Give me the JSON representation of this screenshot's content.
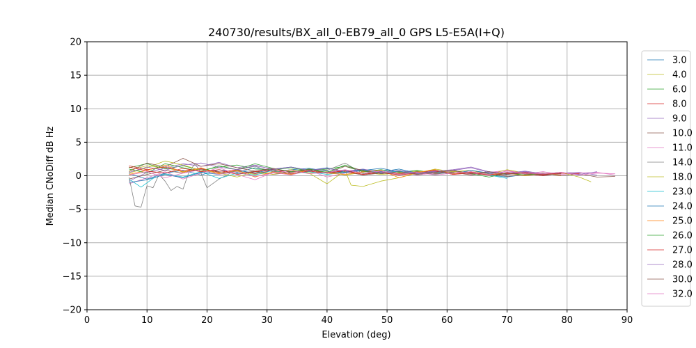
{
  "chart_data": {
    "type": "line",
    "title": "240730/results/BX_all_0-EB79_all_0 GPS L5-E5A(I+Q)",
    "xlabel": "Elevation (deg)",
    "ylabel": "Median CNoDiff dB Hz",
    "xlim": [
      0,
      90
    ],
    "ylim": [
      -20,
      20
    ],
    "x_ticks": [
      0,
      10,
      20,
      30,
      40,
      50,
      60,
      70,
      80,
      90
    ],
    "y_ticks": [
      -20,
      -15,
      -10,
      -5,
      0,
      5,
      10,
      15,
      20
    ],
    "grid": true,
    "legend_position": "right",
    "series": [
      {
        "name": "3.0",
        "color": "#1f77b4",
        "x": [
          7,
          10,
          13,
          16,
          19,
          22,
          25,
          28,
          31,
          34,
          37,
          40,
          43,
          46,
          49,
          52,
          55,
          58,
          61,
          64,
          67,
          70,
          73
        ],
        "y": [
          0.3,
          -0.5,
          0.4,
          0.8,
          0.1,
          0.9,
          0.5,
          1.2,
          0.6,
          0.9,
          1.1,
          0.7,
          0.4,
          0.8,
          1.1,
          0.6,
          0.3,
          0.5,
          0.4,
          0.6,
          0.1,
          -0.2,
          0.2
        ]
      },
      {
        "name": "4.0",
        "color": "#bcbd22",
        "x": [
          7,
          10,
          13,
          16,
          19,
          22,
          25,
          28,
          31,
          34,
          37,
          40,
          43,
          46,
          49,
          52,
          55,
          58,
          61,
          64,
          67,
          70,
          73,
          76
        ],
        "y": [
          0.8,
          1.5,
          1.2,
          0.6,
          1.0,
          0.3,
          0.7,
          0.2,
          0.5,
          0.9,
          0.4,
          0.6,
          0.1,
          0.5,
          0.2,
          0.4,
          0.7,
          0.3,
          0.5,
          0.2,
          0.6,
          0.3,
          0.1,
          0.4
        ]
      },
      {
        "name": "6.0",
        "color": "#2ca02c",
        "x": [
          7,
          10,
          13,
          16,
          19,
          22,
          25,
          28,
          31,
          34,
          37,
          40,
          43,
          46,
          49,
          52,
          55,
          58,
          61,
          64,
          67,
          70,
          73,
          76,
          79
        ],
        "y": [
          1.2,
          1.8,
          1.0,
          1.5,
          0.8,
          1.3,
          1.6,
          1.0,
          0.9,
          1.2,
          0.7,
          1.0,
          1.4,
          0.6,
          0.9,
          0.5,
          0.8,
          0.4,
          0.7,
          0.3,
          0.6,
          0.2,
          0.5,
          0.1,
          0.4
        ]
      },
      {
        "name": "8.0",
        "color": "#d62728",
        "x": [
          7,
          10,
          13,
          16,
          19,
          22,
          25,
          28,
          31,
          34,
          37,
          40,
          43,
          46,
          49,
          52,
          55,
          58,
          61,
          64,
          67,
          70,
          73,
          76,
          79,
          82
        ],
        "y": [
          1.5,
          0.9,
          1.3,
          0.7,
          1.1,
          0.5,
          0.9,
          0.3,
          0.8,
          0.6,
          1.0,
          0.4,
          0.7,
          0.2,
          0.6,
          0.3,
          0.5,
          0.8,
          0.2,
          0.4,
          0.1,
          0.5,
          0.3,
          0.0,
          0.4,
          0.2
        ]
      },
      {
        "name": "9.0",
        "color": "#9467bd",
        "x": [
          7,
          10,
          13,
          16,
          19,
          22,
          25,
          28,
          31,
          34,
          37,
          40,
          43,
          46,
          49,
          52,
          55,
          58,
          61,
          64,
          67,
          70,
          73,
          76,
          79,
          82,
          85
        ],
        "y": [
          -0.8,
          0.5,
          1.1,
          1.8,
          1.4,
          2.0,
          1.2,
          1.6,
          0.9,
          1.3,
          0.8,
          1.1,
          0.6,
          0.9,
          0.4,
          0.7,
          0.3,
          0.6,
          0.8,
          1.2,
          0.5,
          0.3,
          0.6,
          0.2,
          0.4,
          0.5,
          0.1
        ]
      },
      {
        "name": "10.0",
        "color": "#8c564b",
        "x": [
          7,
          10,
          13,
          16,
          19,
          22,
          25,
          28,
          31,
          34,
          37,
          40,
          43,
          46,
          49,
          52,
          55,
          58,
          61,
          64,
          67,
          70,
          73,
          76,
          79,
          82,
          85,
          88
        ],
        "y": [
          -0.5,
          0.2,
          0.8,
          0.4,
          1.0,
          0.6,
          0.3,
          0.7,
          0.2,
          0.5,
          0.9,
          0.4,
          0.6,
          0.1,
          0.4,
          0.2,
          0.6,
          0.3,
          0.5,
          0.1,
          0.3,
          -0.1,
          0.2,
          0.4,
          0.0,
          0.3,
          -0.2,
          -0.1
        ]
      },
      {
        "name": "11.0",
        "color": "#e377c2",
        "x": [
          7,
          10,
          13,
          16,
          19,
          22,
          25,
          28,
          31,
          34,
          37,
          40,
          43,
          46,
          49,
          52,
          55,
          58,
          61,
          64,
          67,
          70,
          73,
          76,
          79,
          82,
          85,
          88
        ],
        "y": [
          -1.2,
          -0.3,
          0.6,
          -0.5,
          0.4,
          1.2,
          0.2,
          -0.6,
          0.5,
          0.1,
          0.8,
          -0.2,
          0.4,
          0.9,
          0.3,
          0.6,
          0.1,
          0.4,
          0.7,
          0.2,
          0.5,
          0.8,
          0.3,
          0.6,
          0.2,
          0.4,
          0.5,
          0.1
        ]
      },
      {
        "name": "14.0",
        "color": "#7f7f7f",
        "x": [
          7,
          8,
          9,
          10,
          11,
          12,
          13,
          14,
          15,
          16,
          17,
          18,
          19,
          20,
          22,
          25,
          28,
          31,
          34,
          37,
          40,
          43,
          46,
          49,
          52,
          55,
          58,
          61,
          64,
          67,
          70
        ],
        "y": [
          -0.2,
          -4.5,
          -4.7,
          -1.5,
          -1.8,
          0.2,
          -0.8,
          -2.2,
          -1.6,
          -2.0,
          0.6,
          1.8,
          0.4,
          -1.8,
          -0.5,
          0.9,
          1.4,
          0.6,
          0.2,
          1.0,
          0.8,
          1.9,
          0.3,
          0.7,
          0.1,
          0.5,
          0.2,
          0.6,
          0.8,
          0.3,
          0.1
        ]
      },
      {
        "name": "18.0",
        "color": "#bcbd22",
        "x": [
          7,
          10,
          13,
          16,
          19,
          22,
          25,
          28,
          31,
          34,
          37,
          40,
          43,
          44,
          46,
          49,
          52,
          55,
          58,
          61,
          64,
          67,
          70,
          73,
          76,
          79,
          82,
          84
        ],
        "y": [
          0.4,
          1.2,
          2.2,
          1.6,
          0.8,
          0.4,
          -0.2,
          0.6,
          0.2,
          0.9,
          0.4,
          -1.2,
          0.8,
          -1.4,
          -1.6,
          -0.8,
          -0.3,
          0.4,
          1.0,
          0.6,
          0.8,
          0.2,
          0.9,
          0.4,
          0.3,
          0.5,
          -0.2,
          -0.9
        ]
      },
      {
        "name": "23.0",
        "color": "#17becf",
        "x": [
          7,
          9,
          11,
          13,
          16,
          19,
          22,
          25,
          28,
          31,
          34,
          37,
          40,
          43,
          46,
          49,
          52,
          55,
          58,
          61,
          64,
          67,
          70
        ],
        "y": [
          -0.5,
          -1.7,
          -0.4,
          0.3,
          -0.2,
          0.6,
          -0.4,
          0.4,
          0.1,
          0.8,
          0.3,
          0.6,
          0.2,
          0.5,
          0.9,
          0.4,
          0.7,
          0.2,
          0.5,
          0.3,
          0.6,
          0.1,
          -0.4
        ]
      },
      {
        "name": "24.0",
        "color": "#1f77b4",
        "x": [
          7,
          10,
          13,
          16,
          19,
          22,
          25,
          28,
          31,
          34,
          37,
          40,
          43,
          46,
          49,
          52,
          55,
          58,
          61,
          64,
          67,
          70,
          73,
          76,
          79
        ],
        "y": [
          -1.0,
          -0.6,
          0.2,
          -0.3,
          0.5,
          0.2,
          0.8,
          0.4,
          1.0,
          1.3,
          0.8,
          1.2,
          0.5,
          0.9,
          0.6,
          1.0,
          0.4,
          0.7,
          0.3,
          0.8,
          0.4,
          0.2,
          0.5,
          0.1,
          0.3
        ]
      },
      {
        "name": "25.0",
        "color": "#ff7f0e",
        "x": [
          7,
          10,
          13,
          16,
          19,
          22,
          25,
          28,
          31,
          34,
          37,
          40,
          43,
          46,
          49,
          52,
          55,
          58,
          61,
          64,
          67,
          70,
          73,
          76,
          79
        ],
        "y": [
          0.2,
          0.8,
          1.6,
          0.5,
          1.2,
          0.3,
          0.8,
          -0.2,
          0.6,
          0.2,
          0.9,
          0.4,
          0.2,
          0.6,
          0.8,
          -0.3,
          0.5,
          0.9,
          0.3,
          0.6,
          0.2,
          0.4,
          0.0,
          0.3,
          0.1
        ]
      },
      {
        "name": "26.0",
        "color": "#2ca02c",
        "x": [
          7,
          10,
          13,
          16,
          19,
          22,
          25,
          28,
          31,
          34,
          37,
          40,
          43,
          46,
          49,
          52,
          55,
          58,
          61,
          64,
          67,
          70,
          73,
          76,
          79
        ],
        "y": [
          1.0,
          0.4,
          1.8,
          1.2,
          0.6,
          1.5,
          0.9,
          1.8,
          1.1,
          0.6,
          1.0,
          0.5,
          1.6,
          0.7,
          0.3,
          0.6,
          0.2,
          0.5,
          0.8,
          0.3,
          -0.2,
          0.4,
          0.1,
          0.3,
          0.5
        ]
      },
      {
        "name": "27.0",
        "color": "#d62728",
        "x": [
          7,
          10,
          13,
          16,
          19,
          22,
          25,
          28,
          31,
          34,
          37,
          40,
          43,
          46,
          49,
          52,
          55,
          58,
          61,
          64,
          67,
          70,
          73,
          76,
          79,
          82
        ],
        "y": [
          1.3,
          0.7,
          0.4,
          1.1,
          0.6,
          0.9,
          0.2,
          0.6,
          0.9,
          0.3,
          0.7,
          0.4,
          0.8,
          0.2,
          0.5,
          0.1,
          0.4,
          0.7,
          0.2,
          0.5,
          0.1,
          0.3,
          0.5,
          0.2,
          0.4,
          0.3
        ]
      },
      {
        "name": "28.0",
        "color": "#9467bd",
        "x": [
          7,
          10,
          13,
          16,
          19,
          22,
          25,
          28,
          31,
          34,
          37,
          40,
          43,
          46,
          49,
          52,
          55,
          58,
          61,
          64,
          67,
          70,
          73,
          76,
          79,
          82,
          85
        ],
        "y": [
          0.5,
          1.3,
          0.8,
          1.6,
          1.9,
          1.3,
          0.9,
          1.5,
          1.0,
          1.3,
          0.8,
          1.1,
          0.7,
          1.0,
          0.5,
          0.8,
          0.4,
          0.7,
          0.9,
          1.3,
          0.6,
          0.4,
          0.7,
          0.3,
          0.5,
          0.2,
          0.6
        ]
      },
      {
        "name": "30.0",
        "color": "#8c564b",
        "x": [
          7,
          10,
          13,
          16,
          19,
          22,
          25,
          28,
          31,
          34,
          37,
          40,
          43,
          46,
          49,
          52,
          55,
          58,
          61,
          64,
          67,
          70,
          73,
          76,
          79
        ],
        "y": [
          0.6,
          1.9,
          1.3,
          2.6,
          1.4,
          1.8,
          1.2,
          0.7,
          1.1,
          0.5,
          0.9,
          0.4,
          1.4,
          0.8,
          0.3,
          0.6,
          0.2,
          0.5,
          0.8,
          0.3,
          0.6,
          0.2,
          0.4,
          0.1,
          0.3
        ]
      },
      {
        "name": "32.0",
        "color": "#e377c2",
        "x": [
          7,
          10,
          13,
          16,
          19,
          22,
          25,
          28,
          31,
          34,
          37,
          40,
          43,
          46,
          49,
          52,
          55,
          58,
          61,
          64,
          67,
          70,
          73,
          76,
          79,
          82,
          85,
          88
        ],
        "y": [
          0.1,
          0.6,
          -0.3,
          0.4,
          0.9,
          0.2,
          0.6,
          -0.1,
          0.4,
          0.8,
          0.3,
          0.5,
          0.9,
          0.4,
          0.7,
          0.2,
          0.5,
          0.1,
          0.4,
          0.6,
          0.2,
          0.7,
          0.4,
          0.3,
          0.5,
          0.1,
          0.4,
          0.3
        ]
      }
    ]
  }
}
